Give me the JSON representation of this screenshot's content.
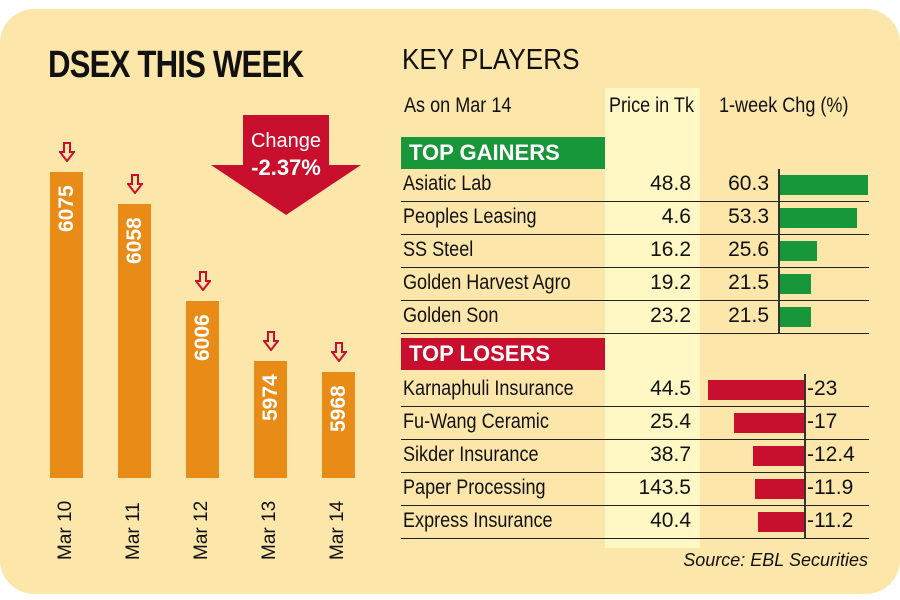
{
  "chart_data": [
    {
      "type": "bar",
      "title": "DSEX THIS WEEK",
      "categories": [
        "Mar 10",
        "Mar 11",
        "Mar 12",
        "Mar 13",
        "Mar 14"
      ],
      "values": [
        6075,
        6058,
        6006,
        5974,
        5968
      ],
      "change_label": "Change",
      "change_value": "-2.37%",
      "colors": {
        "bar": "#e98b17",
        "arrow": "#c8102e"
      }
    },
    {
      "type": "table",
      "title": "KEY PLAYERS",
      "headers": [
        "As on Mar 14",
        "Price in Tk",
        "1-week Chg (%)"
      ],
      "gainers_label": "TOP GAINERS",
      "gainers": [
        {
          "name": "Asiatic Lab",
          "price": "48.8",
          "chg": 60.3
        },
        {
          "name": "Peoples Leasing",
          "price": "4.6",
          "chg": 53.3
        },
        {
          "name": "SS Steel",
          "price": "16.2",
          "chg": 25.6
        },
        {
          "name": "Golden Harvest Agro",
          "price": "19.2",
          "chg": 21.5
        },
        {
          "name": "Golden Son",
          "price": "23.2",
          "chg": 21.5
        }
      ],
      "losers_label": "TOP LOSERS",
      "losers": [
        {
          "name": "Karnaphuli Insurance",
          "price": "44.5",
          "chg": -23
        },
        {
          "name": "Fu-Wang Ceramic",
          "price": "25.4",
          "chg": -17
        },
        {
          "name": "Sikder Insurance",
          "price": "38.7",
          "chg": -12.4
        },
        {
          "name": "Paper Processing",
          "price": "143.5",
          "chg": -11.9
        },
        {
          "name": "Express Insurance",
          "price": "40.4",
          "chg": -11.2
        }
      ],
      "colors": {
        "gain": "#17963a",
        "loss": "#c8102e"
      }
    }
  ],
  "source": "Source: EBL Securities"
}
